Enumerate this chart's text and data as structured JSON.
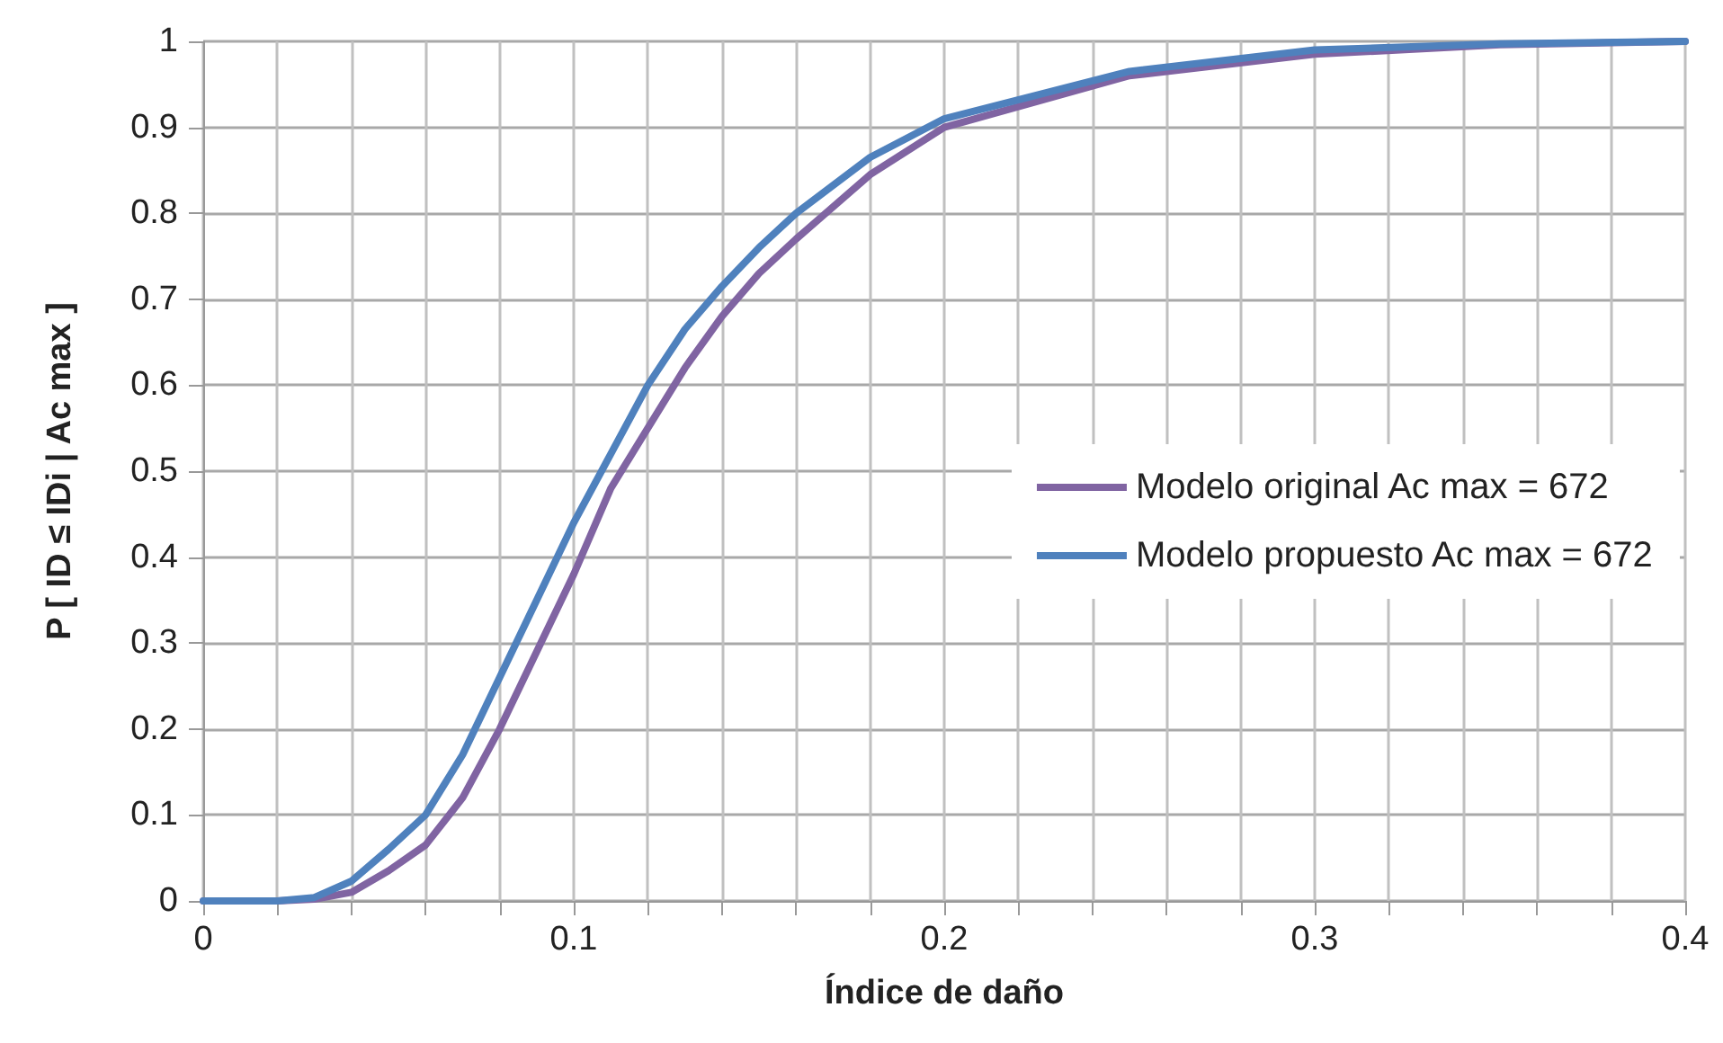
{
  "chart_data": {
    "type": "line",
    "xlabel": "Índice de daño",
    "ylabel": "P [ ID ≤ IDi | Ac max ]",
    "xlim": [
      0,
      0.4
    ],
    "xticks": [
      0,
      {
        "value": 0.02,
        "label": null
      },
      {
        "value": 0.04,
        "label": null
      },
      {
        "value": 0.06,
        "label": null
      },
      {
        "value": 0.08,
        "label": null
      },
      0.1,
      {
        "value": 0.12,
        "label": null
      },
      {
        "value": 0.14,
        "label": null
      },
      {
        "value": 0.16,
        "label": null
      },
      {
        "value": 0.18,
        "label": null
      },
      0.2,
      {
        "value": 0.22,
        "label": null
      },
      {
        "value": 0.24,
        "label": null
      },
      {
        "value": 0.26,
        "label": null
      },
      {
        "value": 0.28,
        "label": null
      },
      0.3,
      {
        "value": 0.32,
        "label": null
      },
      {
        "value": 0.34,
        "label": null
      },
      {
        "value": 0.36,
        "label": null
      },
      {
        "value": 0.38,
        "label": null
      },
      0.4
    ],
    "ylim": [
      0,
      1
    ],
    "yticks": [
      0,
      0.1,
      0.2,
      0.3,
      0.4,
      0.5,
      0.6,
      0.7,
      0.8,
      0.9,
      1
    ],
    "grid": true,
    "legend": "right",
    "marker": "none",
    "line_style": "solid",
    "x": [
      0,
      0.01,
      0.02,
      0.03,
      0.04,
      0.05,
      0.06,
      0.07,
      0.08,
      0.09,
      0.1,
      0.11,
      0.12,
      0.13,
      0.14,
      0.15,
      0.16,
      0.18,
      0.2,
      0.25,
      0.3,
      0.35,
      0.4
    ],
    "series": [
      {
        "name": "Modelo original Ac max = 672",
        "color": "#8064a2",
        "values": [
          0,
          0,
          0,
          0.002,
          0.01,
          0.035,
          0.065,
          0.12,
          0.2,
          0.29,
          0.38,
          0.48,
          0.55,
          0.62,
          0.68,
          0.73,
          0.77,
          0.845,
          0.9,
          0.96,
          0.985,
          0.996,
          1
        ]
      },
      {
        "name": "Modelo propuesto Ac max = 672",
        "color": "#4f81bd",
        "values": [
          0,
          0,
          0,
          0.004,
          0.023,
          0.06,
          0.1,
          0.17,
          0.26,
          0.35,
          0.44,
          0.52,
          0.6,
          0.665,
          0.715,
          0.76,
          0.8,
          0.865,
          0.91,
          0.965,
          0.99,
          0.997,
          1
        ]
      }
    ]
  }
}
